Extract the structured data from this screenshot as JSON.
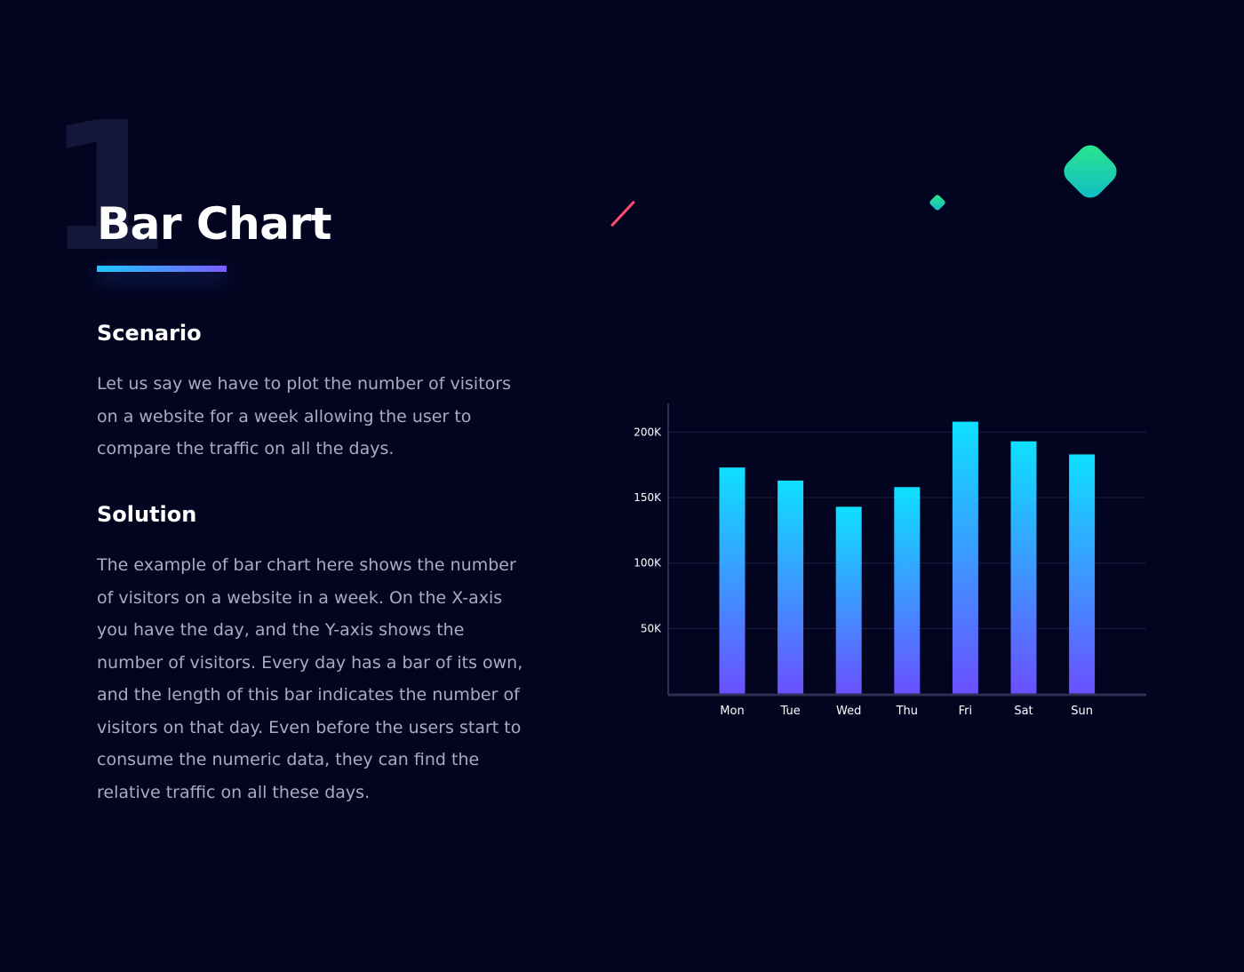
{
  "slide": {
    "number": "1",
    "title": "Bar Chart"
  },
  "scenario": {
    "heading": "Scenario",
    "lines": [
      "Let us say we have to plot the number of visitors",
      "on a website for a week allowing the user to",
      "compare the traffic on all the days."
    ]
  },
  "solution": {
    "heading": "Solution",
    "lines": [
      "The example of bar chart here shows the number",
      "of visitors on a website in a week. On the X-axis",
      "you have the day, and the Y-axis shows the",
      "number of visitors. Every day has a bar of its own,",
      "and the length of this bar indicates the number of",
      "visitors on that day. Even before the users start to",
      "consume the numeric data, they can find the",
      "relative traffic on all these days."
    ]
  },
  "colors": {
    "background": "#03041f",
    "bar_top": "#0ee0ff",
    "bar_bottom": "#6b50ff",
    "accent_red": "#ff4d6d",
    "accent_green": "#2ee88a"
  },
  "decorations": {
    "red_line": "slash-line",
    "big_diamond": "diamond-shape",
    "small_diamond": "diamond-shape"
  },
  "chart_data": {
    "type": "bar",
    "categories": [
      "Mon",
      "Tue",
      "Wed",
      "Thu",
      "Fri",
      "Sat",
      "Sun"
    ],
    "values": [
      173000,
      163000,
      143000,
      158000,
      208000,
      193000,
      183000
    ],
    "y_ticks": [
      50000,
      100000,
      150000,
      200000
    ],
    "y_tick_labels": [
      "50K",
      "100K",
      "150K",
      "200K"
    ],
    "ylim": [
      0,
      222000
    ],
    "grid": true,
    "legend": "none",
    "title": "",
    "xlabel": "",
    "ylabel": ""
  }
}
